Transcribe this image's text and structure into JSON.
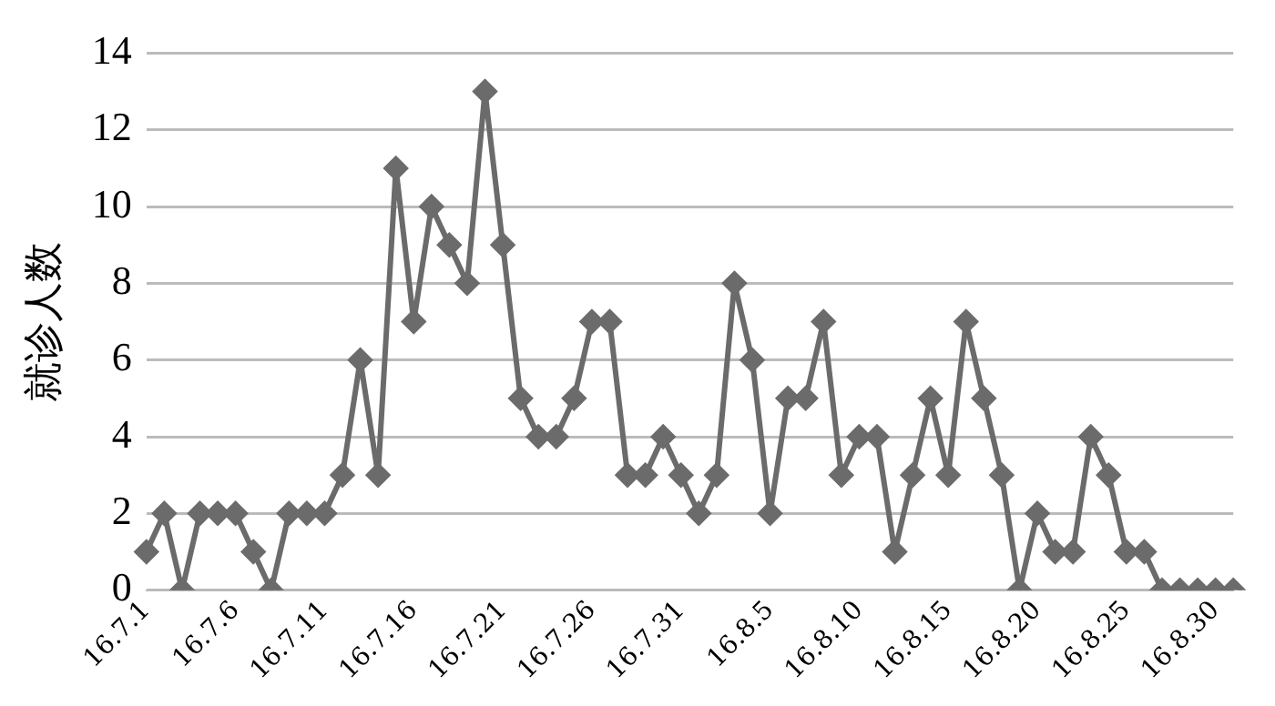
{
  "chart_data": {
    "type": "line",
    "ylabel": "就诊人数",
    "categories": [
      "16.7.1",
      null,
      null,
      null,
      null,
      "16.7.6",
      null,
      null,
      null,
      null,
      "16.7.11",
      null,
      null,
      null,
      null,
      "16.7.16",
      null,
      null,
      null,
      null,
      "16.7.21",
      null,
      null,
      null,
      null,
      "16.7.26",
      null,
      null,
      null,
      null,
      "16.7.31",
      null,
      null,
      null,
      null,
      "16.8.5",
      null,
      null,
      null,
      null,
      "16.8.10",
      null,
      null,
      null,
      null,
      "16.8.15",
      null,
      null,
      null,
      null,
      "16.8.20",
      null,
      null,
      null,
      null,
      "16.8.25",
      null,
      null,
      null,
      null,
      "16.8.30",
      null
    ],
    "values": [
      1,
      2,
      0,
      2,
      2,
      2,
      1,
      0,
      2,
      2,
      2,
      3,
      6,
      3,
      11,
      7,
      10,
      9,
      8,
      13,
      9,
      5,
      4,
      4,
      5,
      7,
      7,
      3,
      3,
      4,
      3,
      2,
      3,
      8,
      6,
      2,
      5,
      5,
      7,
      3,
      4,
      4,
      1,
      3,
      5,
      3,
      7,
      5,
      3,
      0,
      2,
      1,
      1,
      4,
      3,
      1,
      1,
      0,
      0,
      0,
      0,
      0
    ],
    "color": "#6b6b6b",
    "ylim": [
      0,
      14
    ],
    "yticks": [
      0,
      2,
      4,
      6,
      8,
      10,
      12,
      14
    ],
    "grid": "y",
    "marker": "diamond",
    "line_style": "solid"
  }
}
